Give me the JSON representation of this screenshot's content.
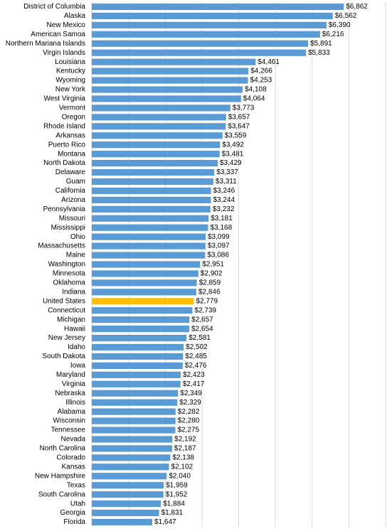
{
  "chart_data": {
    "type": "barh",
    "categories": [
      "District of Columbia",
      "Alaska",
      "New Mexico",
      "American Samoa",
      "Northern Mariana Islands",
      "Virgin Islands",
      "Louisiana",
      "Kentucky",
      "Wyoming",
      "New York",
      "West Virginia",
      "Vermont",
      "Oregon",
      "Rhode Island",
      "Arkansas",
      "Puerto Rico",
      "Montana",
      "North Dakota",
      "Delaware",
      "Guam",
      "California",
      "Arizona",
      "Pennsylvania",
      "Missouri",
      "Mississippi",
      "Ohio",
      "Massachusetts",
      "Maine",
      "Washington",
      "Minnesota",
      "Oklahoma",
      "Indiana",
      "United States",
      "Connecticut",
      "Michigan",
      "Hawaii",
      "New Jersey",
      "Idaho",
      "South Dakota",
      "Iowa",
      "Maryland",
      "Virginia",
      "Nebraska",
      "Illinois",
      "Alabama",
      "Wisconsin",
      "Tennessee",
      "Nevada",
      "North Carolina",
      "Colorado",
      "Kansas",
      "New Hampshire",
      "Texas",
      "South Carolina",
      "Utah",
      "Georgia",
      "Florida"
    ],
    "values": [
      6862,
      6562,
      6390,
      6216,
      5891,
      5833,
      4461,
      4266,
      4253,
      4108,
      4064,
      3773,
      3657,
      3647,
      3559,
      3492,
      3481,
      3429,
      3337,
      3311,
      3246,
      3244,
      3232,
      3181,
      3168,
      3099,
      3097,
      3086,
      2951,
      2902,
      2859,
      2846,
      2779,
      2739,
      2657,
      2654,
      2581,
      2502,
      2485,
      2476,
      2423,
      2417,
      2349,
      2329,
      2282,
      2280,
      2275,
      2192,
      2187,
      2138,
      2102,
      2040,
      1959,
      1952,
      1884,
      1831,
      1647
    ],
    "value_labels": [
      "$6,862",
      "$6,562",
      "$6,390",
      "$6,216",
      "$5,891",
      "$5,833",
      "$4,461",
      "$4,266",
      "$4,253",
      "$4,108",
      "$4,064",
      "$3,773",
      "$3,657",
      "$3,647",
      "$3,559",
      "$3,492",
      "$3,481",
      "$3,429",
      "$3,337",
      "$3,311",
      "$3,246",
      "$3,244",
      "$3,232",
      "$3,181",
      "$3,168",
      "$3,099",
      "$3,097",
      "$3,086",
      "$2,951",
      "$2,902",
      "$2,859",
      "$2,846",
      "$2,779",
      "$2,739",
      "$2,657",
      "$2,654",
      "$2,581",
      "$2,502",
      "$2,485",
      "$2,476",
      "$2,423",
      "$2,417",
      "$2,349",
      "$2,329",
      "$2,282",
      "$2,280",
      "$2,275",
      "$2,192",
      "$2,187",
      "$2,138",
      "$2,102",
      "$2,040",
      "$1,959",
      "$1,952",
      "$1,884",
      "$1,831",
      "$1,647"
    ],
    "colors": [
      "#5b9bd5",
      "#5b9bd5",
      "#5b9bd5",
      "#5b9bd5",
      "#5b9bd5",
      "#5b9bd5",
      "#5b9bd5",
      "#5b9bd5",
      "#5b9bd5",
      "#5b9bd5",
      "#5b9bd5",
      "#5b9bd5",
      "#5b9bd5",
      "#5b9bd5",
      "#5b9bd5",
      "#5b9bd5",
      "#5b9bd5",
      "#5b9bd5",
      "#5b9bd5",
      "#5b9bd5",
      "#5b9bd5",
      "#5b9bd5",
      "#5b9bd5",
      "#5b9bd5",
      "#5b9bd5",
      "#5b9bd5",
      "#5b9bd5",
      "#5b9bd5",
      "#5b9bd5",
      "#5b9bd5",
      "#5b9bd5",
      "#5b9bd5",
      "#ffc000",
      "#5b9bd5",
      "#5b9bd5",
      "#5b9bd5",
      "#5b9bd5",
      "#5b9bd5",
      "#5b9bd5",
      "#5b9bd5",
      "#5b9bd5",
      "#5b9bd5",
      "#5b9bd5",
      "#5b9bd5",
      "#5b9bd5",
      "#5b9bd5",
      "#5b9bd5",
      "#5b9bd5",
      "#5b9bd5",
      "#5b9bd5",
      "#5b9bd5",
      "#5b9bd5",
      "#5b9bd5",
      "#5b9bd5",
      "#5b9bd5",
      "#5b9bd5",
      "#5b9bd5"
    ],
    "xlim": [
      0,
      8000
    ],
    "xticks": [
      0,
      1000,
      2000,
      3000,
      4000,
      5000,
      6000,
      7000,
      8000
    ],
    "grid": true
  }
}
